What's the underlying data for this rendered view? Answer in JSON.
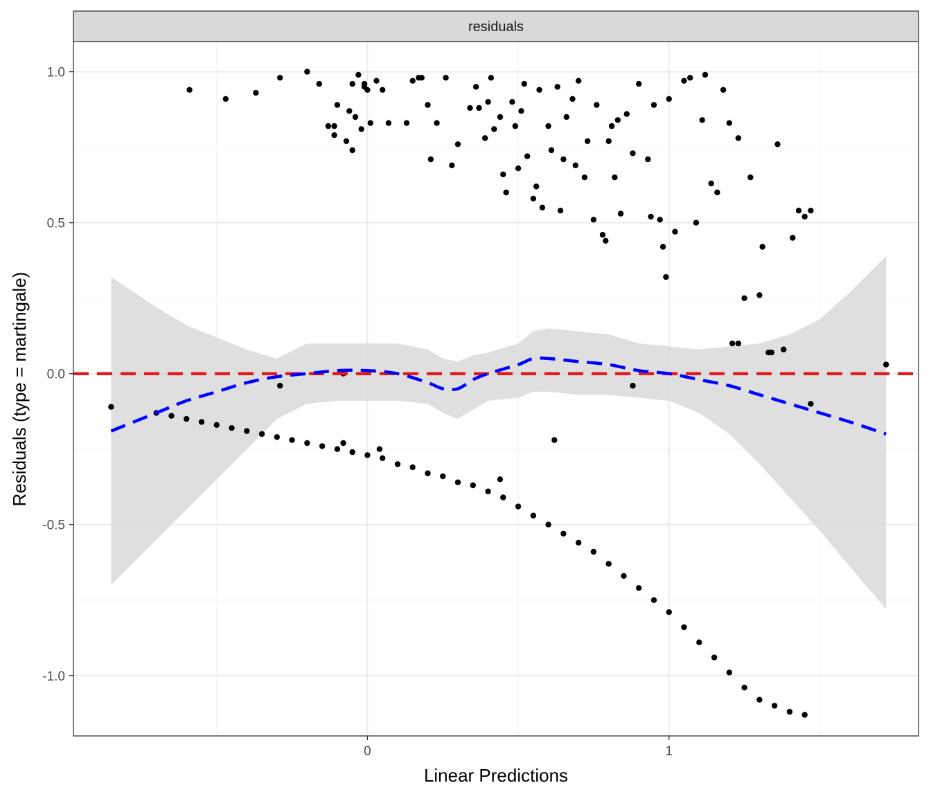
{
  "chart_data": {
    "type": "scatter",
    "facet_label": "residuals",
    "xlabel": "Linear Predictions",
    "ylabel": "Residuals (type = martingale)",
    "xlim": [
      -0.975,
      1.8275
    ],
    "ylim": [
      -1.2,
      1.1
    ],
    "x_ticks": [
      0,
      1
    ],
    "x_tick_labels": [
      "0",
      "1"
    ],
    "y_ticks": [
      1.0,
      0.5,
      0.0,
      -0.5,
      -1.0
    ],
    "y_tick_labels": [
      "1.0",
      "0.5",
      "0.0",
      "-0.5",
      "-1.0"
    ],
    "grid": true,
    "colors": {
      "points": "#000000",
      "smooth_line": "#0000ff",
      "confidence_band": "#d9d9d9",
      "reference_line": "#e41a1c",
      "strip_fill": "#d9d9d9",
      "grid_major": "#ebebeb",
      "grid_minor": "#f3f3f3"
    },
    "reference_line": {
      "y": 0,
      "style": "dashed"
    },
    "smooth": {
      "style": "dashed",
      "x": [
        -0.85,
        -0.7,
        -0.6,
        -0.5,
        -0.4,
        -0.3,
        -0.2,
        -0.1,
        0.0,
        0.1,
        0.2,
        0.25,
        0.3,
        0.35,
        0.4,
        0.5,
        0.55,
        0.6,
        0.7,
        0.8,
        0.9,
        1.0,
        1.1,
        1.2,
        1.3,
        1.4,
        1.5,
        1.6,
        1.72
      ],
      "y": [
        -0.19,
        -0.13,
        -0.09,
        -0.06,
        -0.03,
        -0.01,
        0.0,
        0.01,
        0.01,
        0.0,
        -0.03,
        -0.05,
        -0.05,
        -0.02,
        0.0,
        0.03,
        0.05,
        0.05,
        0.04,
        0.03,
        0.01,
        0.0,
        -0.02,
        -0.04,
        -0.07,
        -0.1,
        -0.13,
        -0.16,
        -0.2
      ]
    },
    "confidence_band": {
      "x": [
        -0.85,
        -0.7,
        -0.6,
        -0.5,
        -0.4,
        -0.3,
        -0.2,
        -0.1,
        0.0,
        0.1,
        0.2,
        0.25,
        0.3,
        0.35,
        0.4,
        0.5,
        0.55,
        0.6,
        0.7,
        0.8,
        0.9,
        1.0,
        1.1,
        1.2,
        1.3,
        1.4,
        1.5,
        1.6,
        1.72
      ],
      "upper": [
        0.32,
        0.22,
        0.16,
        0.12,
        0.08,
        0.05,
        0.1,
        0.1,
        0.1,
        0.1,
        0.08,
        0.05,
        0.04,
        0.06,
        0.07,
        0.1,
        0.14,
        0.15,
        0.14,
        0.13,
        0.1,
        0.09,
        0.08,
        0.09,
        0.1,
        0.13,
        0.18,
        0.27,
        0.39
      ],
      "lower": [
        -0.7,
        -0.55,
        -0.45,
        -0.35,
        -0.25,
        -0.15,
        -0.1,
        -0.09,
        -0.09,
        -0.09,
        -0.1,
        -0.13,
        -0.15,
        -0.12,
        -0.09,
        -0.08,
        -0.06,
        -0.06,
        -0.07,
        -0.07,
        -0.08,
        -0.09,
        -0.13,
        -0.2,
        -0.3,
        -0.41,
        -0.52,
        -0.64,
        -0.78
      ]
    },
    "series": [
      {
        "x": [
          -0.59,
          -0.47,
          -0.37,
          -0.29,
          -0.2,
          -0.16,
          -0.13,
          -0.11,
          -0.11,
          -0.1,
          -0.05,
          -0.07,
          -0.06,
          -0.05,
          -0.04,
          -0.03,
          -0.02,
          -0.01,
          -0.01,
          0.0,
          0.01,
          0.03,
          0.05,
          0.07,
          0.13,
          0.15,
          0.17,
          0.18,
          0.2,
          0.21,
          0.23,
          0.26,
          0.28,
          0.3,
          0.34,
          0.36,
          0.37,
          0.39,
          0.4,
          0.41,
          0.42,
          0.44,
          0.45,
          0.46,
          0.48,
          0.49,
          0.5,
          0.51,
          0.52,
          0.53,
          0.55,
          0.56,
          0.57,
          0.58,
          0.6,
          0.61,
          0.63,
          0.64,
          0.65,
          0.66,
          0.68,
          0.69,
          0.7,
          0.72,
          0.73,
          0.75,
          0.76,
          0.78,
          0.79,
          0.8,
          0.81,
          0.82,
          0.83,
          0.84,
          0.86,
          0.88,
          0.9,
          0.93,
          0.94,
          0.95,
          0.97,
          0.98,
          0.99,
          1.0,
          1.02,
          1.05,
          1.07,
          1.09,
          1.11,
          1.12,
          1.14,
          1.16,
          1.18,
          1.2,
          1.21,
          1.23,
          1.25,
          1.27,
          1.3,
          1.31,
          1.33,
          1.36,
          1.38,
          1.41,
          1.43,
          1.45,
          1.47
        ],
        "y": [
          0.94,
          0.91,
          0.93,
          0.98,
          1.0,
          0.96,
          0.82,
          0.79,
          0.82,
          0.89,
          0.96,
          0.77,
          0.87,
          0.74,
          0.85,
          0.99,
          0.81,
          0.96,
          0.95,
          0.94,
          0.83,
          0.97,
          0.94,
          0.83,
          0.83,
          0.97,
          0.98,
          0.98,
          0.89,
          0.71,
          0.83,
          0.98,
          0.69,
          0.76,
          0.88,
          0.95,
          0.88,
          0.78,
          0.9,
          0.98,
          0.81,
          0.85,
          0.66,
          0.6,
          0.9,
          0.82,
          0.68,
          0.87,
          0.96,
          0.72,
          0.58,
          0.62,
          0.94,
          0.55,
          0.82,
          0.74,
          0.95,
          0.54,
          0.71,
          0.85,
          0.91,
          0.69,
          0.97,
          0.65,
          0.77,
          0.51,
          0.89,
          0.46,
          0.44,
          0.77,
          0.82,
          0.65,
          0.84,
          0.53,
          0.86,
          0.73,
          0.96,
          0.71,
          0.52,
          0.89,
          0.51,
          0.42,
          0.32,
          0.91,
          0.47,
          0.97,
          0.98,
          0.5,
          0.84,
          0.99,
          0.63,
          0.6,
          0.94,
          0.83,
          0.1,
          0.78,
          0.25,
          0.65,
          0.26,
          0.42,
          0.07,
          0.76,
          0.08,
          0.45,
          0.54,
          0.52,
          0.54
        ]
      },
      {
        "x": [
          -0.85,
          -0.7,
          -0.65,
          -0.6,
          -0.55,
          -0.5,
          -0.45,
          -0.4,
          -0.35,
          -0.3,
          -0.25,
          -0.2,
          -0.15,
          -0.1,
          -0.05,
          0.0,
          0.05,
          0.1,
          0.15,
          0.2,
          0.25,
          0.3,
          0.35,
          0.4,
          0.45,
          0.5,
          0.55,
          0.6,
          0.65,
          0.7,
          0.75,
          0.8,
          0.85,
          0.9,
          0.95,
          1.0,
          1.05,
          1.1,
          1.15,
          1.2,
          1.25,
          1.3,
          1.35,
          1.4,
          1.45
        ],
        "y": [
          -0.11,
          -0.13,
          -0.14,
          -0.15,
          -0.16,
          -0.17,
          -0.18,
          -0.19,
          -0.2,
          -0.21,
          -0.22,
          -0.23,
          -0.24,
          -0.25,
          -0.26,
          -0.27,
          -0.28,
          -0.3,
          -0.31,
          -0.33,
          -0.34,
          -0.36,
          -0.37,
          -0.39,
          -0.41,
          -0.44,
          -0.47,
          -0.5,
          -0.53,
          -0.56,
          -0.59,
          -0.63,
          -0.67,
          -0.71,
          -0.75,
          -0.79,
          -0.84,
          -0.89,
          -0.94,
          -0.99,
          -1.04,
          -1.08,
          -1.1,
          -1.12,
          -1.13
        ]
      },
      {
        "x": [
          -0.29,
          -0.08,
          -0.08,
          0.04,
          0.44,
          0.62,
          0.88,
          1.23,
          1.34,
          1.38,
          1.47,
          1.72
        ],
        "y": [
          -0.04,
          -0.23,
          0.0,
          -0.25,
          -0.35,
          -0.22,
          -0.04,
          0.1,
          0.07,
          0.08,
          -0.1,
          0.03
        ]
      }
    ]
  }
}
